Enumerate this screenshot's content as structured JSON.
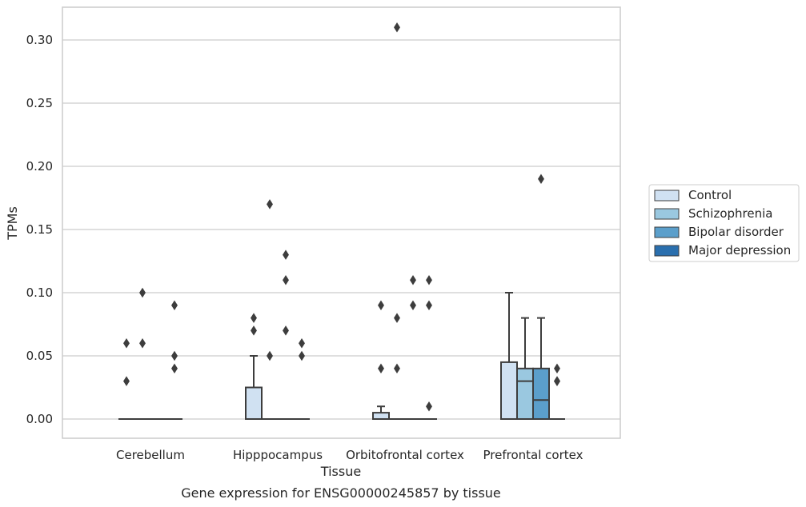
{
  "chart_data": {
    "type": "box",
    "xlabel": "Tissue",
    "ylabel": "TPMs",
    "caption": "Gene expression for ENSG00000245857 by tissue",
    "categories": [
      "Cerebellum",
      "Hipppocampus",
      "Orbitofrontal cortex",
      "Prefrontal cortex"
    ],
    "ylim": [
      -0.015,
      0.325
    ],
    "yticks": [
      "0.00",
      "0.05",
      "0.10",
      "0.15",
      "0.20",
      "0.25",
      "0.30"
    ],
    "grid": true,
    "legend_position": "right",
    "series": [
      {
        "name": "Control",
        "color": "#d0e1f2",
        "boxes": [
          {
            "q1": 0,
            "median": 0,
            "q3": 0,
            "whisker_low": 0,
            "whisker_high": 0,
            "outliers": [
              0.06,
              0.03
            ]
          },
          {
            "q1": 0,
            "median": 0,
            "q3": 0.025,
            "whisker_low": 0,
            "whisker_high": 0.05,
            "outliers": [
              0.08,
              0.07
            ]
          },
          {
            "q1": 0,
            "median": 0,
            "q3": 0.005,
            "whisker_low": 0,
            "whisker_high": 0.01,
            "outliers": [
              0.09,
              0.04
            ]
          },
          {
            "q1": 0,
            "median": 0,
            "q3": 0.045,
            "whisker_low": 0,
            "whisker_high": 0.1,
            "outliers": []
          }
        ]
      },
      {
        "name": "Schizophrenia",
        "color": "#9ac8e0",
        "boxes": [
          {
            "q1": 0,
            "median": 0,
            "q3": 0,
            "whisker_low": 0,
            "whisker_high": 0,
            "outliers": [
              0.1,
              0.06
            ]
          },
          {
            "q1": 0,
            "median": 0,
            "q3": 0,
            "whisker_low": 0,
            "whisker_high": 0,
            "outliers": [
              0.17,
              0.05
            ]
          },
          {
            "q1": 0,
            "median": 0,
            "q3": 0,
            "whisker_low": 0,
            "whisker_high": 0,
            "outliers": [
              0.31,
              0.08,
              0.04
            ]
          },
          {
            "q1": 0,
            "median": 0.03,
            "q3": 0.04,
            "whisker_low": 0,
            "whisker_high": 0.08,
            "outliers": []
          }
        ]
      },
      {
        "name": "Bipolar disorder",
        "color": "#5b9fcb",
        "boxes": [
          {
            "q1": 0,
            "median": 0,
            "q3": 0,
            "whisker_low": 0,
            "whisker_high": 0,
            "outliers": []
          },
          {
            "q1": 0,
            "median": 0,
            "q3": 0,
            "whisker_low": 0,
            "whisker_high": 0,
            "outliers": [
              0.13,
              0.11,
              0.07
            ]
          },
          {
            "q1": 0,
            "median": 0,
            "q3": 0,
            "whisker_low": 0,
            "whisker_high": 0,
            "outliers": [
              0.11,
              0.09
            ]
          },
          {
            "q1": 0,
            "median": 0.015,
            "q3": 0.04,
            "whisker_low": 0,
            "whisker_high": 0.08,
            "outliers": [
              0.19
            ]
          }
        ]
      },
      {
        "name": "Major depression",
        "color": "#2a6fae",
        "boxes": [
          {
            "q1": 0,
            "median": 0,
            "q3": 0,
            "whisker_low": 0,
            "whisker_high": 0,
            "outliers": [
              0.09,
              0.05,
              0.04
            ]
          },
          {
            "q1": 0,
            "median": 0,
            "q3": 0,
            "whisker_low": 0,
            "whisker_high": 0,
            "outliers": [
              0.06,
              0.05
            ]
          },
          {
            "q1": 0,
            "median": 0,
            "q3": 0,
            "whisker_low": 0,
            "whisker_high": 0,
            "outliers": [
              0.11,
              0.09,
              0.01
            ]
          },
          {
            "q1": 0,
            "median": 0,
            "q3": 0,
            "whisker_low": 0,
            "whisker_high": 0,
            "outliers": [
              0.04,
              0.03,
              0.03
            ]
          }
        ]
      }
    ]
  }
}
